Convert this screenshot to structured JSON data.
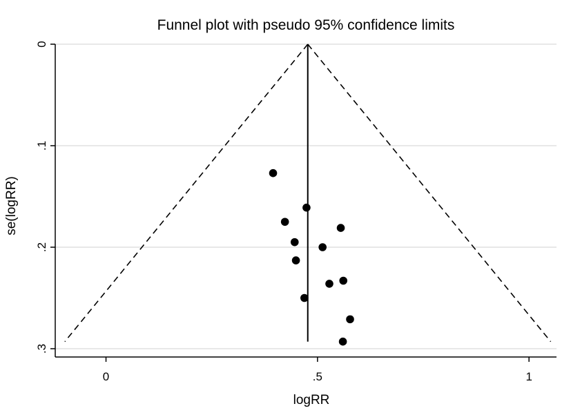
{
  "chart_data": {
    "type": "scatter",
    "title": "Funnel plot with pseudo 95% confidence limits",
    "xlabel": "logRR",
    "ylabel": "se(logRR)",
    "xlim": [
      -0.12,
      1.065
    ],
    "ylim": [
      0,
      0.31
    ],
    "y_reversed": true,
    "x_ticks": [
      {
        "value": 0,
        "label": "0"
      },
      {
        "value": 0.5,
        "label": ".5"
      },
      {
        "value": 1,
        "label": "1"
      }
    ],
    "y_ticks": [
      {
        "value": 0,
        "label": "0"
      },
      {
        "value": 0.1,
        "label": ".1"
      },
      {
        "value": 0.2,
        "label": ".2"
      },
      {
        "value": 0.3,
        "label": ".3"
      }
    ],
    "grid": "horizontal",
    "pooled_estimate": 0.477,
    "se_max": 0.293,
    "points": [
      {
        "x": 0.395,
        "y": 0.127
      },
      {
        "x": 0.474,
        "y": 0.161
      },
      {
        "x": 0.423,
        "y": 0.175
      },
      {
        "x": 0.555,
        "y": 0.181
      },
      {
        "x": 0.446,
        "y": 0.195
      },
      {
        "x": 0.512,
        "y": 0.2
      },
      {
        "x": 0.449,
        "y": 0.213
      },
      {
        "x": 0.561,
        "y": 0.233
      },
      {
        "x": 0.528,
        "y": 0.236
      },
      {
        "x": 0.469,
        "y": 0.25
      },
      {
        "x": 0.577,
        "y": 0.271
      },
      {
        "x": 0.56,
        "y": 0.293
      }
    ],
    "colors": {
      "points": "#000000",
      "lines": "#000000",
      "grid": "#d9d9d9"
    }
  }
}
